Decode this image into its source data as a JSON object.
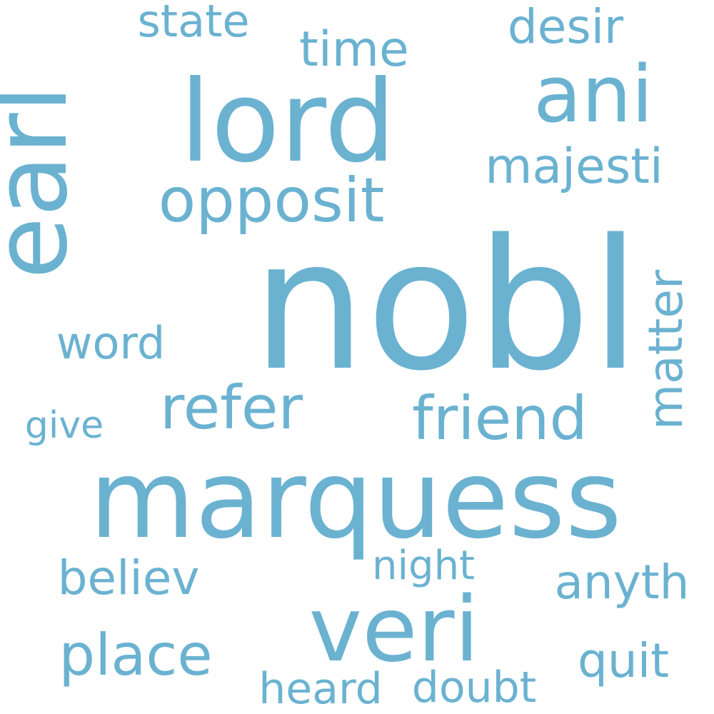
{
  "background_color": "#ffffff",
  "word_color": "#6bb2d1",
  "words": [
    {
      "text": "nobl"
    },
    {
      "text": "marquess"
    },
    {
      "text": "lord"
    },
    {
      "text": "earl"
    },
    {
      "text": "veri"
    },
    {
      "text": "ani"
    },
    {
      "text": "opposit"
    },
    {
      "text": "refer"
    },
    {
      "text": "friend"
    },
    {
      "text": "majesti"
    },
    {
      "text": "matter"
    },
    {
      "text": "place"
    },
    {
      "text": "time"
    },
    {
      "text": "desir"
    },
    {
      "text": "state"
    },
    {
      "text": "word"
    },
    {
      "text": "believ"
    },
    {
      "text": "anyth"
    },
    {
      "text": "quit"
    },
    {
      "text": "night"
    },
    {
      "text": "give"
    },
    {
      "text": "heard"
    },
    {
      "text": "doubt"
    }
  ]
}
